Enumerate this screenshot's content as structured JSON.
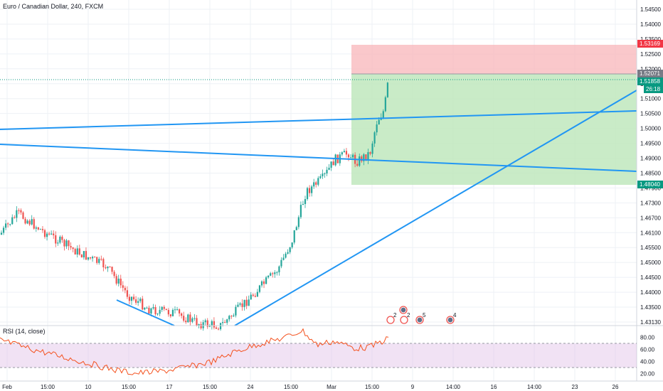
{
  "chart_data": [
    {
      "type": "candlestick",
      "title": "Euro / Canadian Dollar, 240, FXCM",
      "ylim": [
        1.4313,
        1.5518
      ],
      "y_ticks": [
        "1.54500",
        "1.54000",
        "1.53500",
        "1.52500",
        "1.52000",
        "1.51500",
        "1.51000",
        "1.50500",
        "1.50000",
        "1.49500",
        "1.49000",
        "1.48500",
        "1.47900",
        "1.47300",
        "1.46700",
        "1.46100",
        "1.45500",
        "1.45000",
        "1.44500",
        "1.44000",
        "1.43500",
        "1.43130"
      ],
      "x_ticks": [
        "Feb",
        "15:00",
        "10",
        "15:00",
        "17",
        "15:00",
        "24",
        "15:00",
        "Mar",
        "15:00",
        "9",
        "14:00",
        "16",
        "14:00",
        "23",
        "26"
      ],
      "price_tags": {
        "stop": {
          "value": "1.53169",
          "color": "#f23645"
        },
        "entry": {
          "value": "1.52071",
          "color": "#787b86"
        },
        "current": {
          "value": "1.51858",
          "color": "#089981"
        },
        "countdown": {
          "value": "26:18",
          "color": "#089981"
        },
        "target": {
          "value": "1.48040",
          "color": "#089981"
        }
      },
      "colors": {
        "up": "#26a69a",
        "down": "#ef5350",
        "trendline": "#2196f3"
      },
      "event_badges": [
        "2",
        "2",
        "5",
        "4"
      ]
    },
    {
      "type": "line",
      "title": "RSI (14, close)",
      "ylim": [
        20,
        80
      ],
      "y_ticks": [
        "80.00",
        "60.00",
        "40.00",
        "20.00"
      ],
      "band": [
        30,
        70
      ],
      "color": "#f4511e",
      "band_color": "#9c27b0"
    }
  ]
}
